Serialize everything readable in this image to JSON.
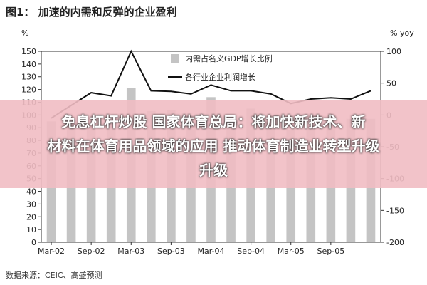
{
  "title": "图1：  加速的内需和反弹的企业盈利",
  "left_unit": "%",
  "right_unit": "% yoy",
  "source": "数据来源：CEIC、高盛预测",
  "overlay": {
    "line1": "免息杠杆炒股 国家体育总局：将加快新技术、新",
    "line2": "材料在体育用品领域的应用 推动体育制造业转型升级",
    "line3": "升级"
  },
  "chart_data": {
    "type": "bar+line",
    "left_axis": {
      "ylim": [
        0,
        150
      ],
      "ticks": [
        0,
        10,
        20,
        30,
        40,
        50,
        60,
        70,
        80,
        90,
        100,
        110,
        120,
        130,
        140,
        150
      ]
    },
    "right_axis": {
      "ylim": [
        -200,
        100
      ],
      "ticks": [
        100,
        50,
        0,
        -50,
        -100,
        -150,
        -200
      ]
    },
    "x_ticks": [
      "Mar-02",
      "Sep-02",
      "Mar-03",
      "Sep-03",
      "Mar-04",
      "Sep-04",
      "Mar-05",
      "Sep-05"
    ],
    "x_tick_index": [
      0,
      2,
      4,
      6,
      8,
      10,
      12,
      14
    ],
    "legend": {
      "position": "top-right",
      "bar_label": "内需占名义GDP增长比例",
      "line_label": "各行业企业利润增长"
    },
    "colors": {
      "bar": "#c4c4c4",
      "line": "#111111"
    },
    "bar_series": {
      "name": "内需占名义GDP增长比例",
      "values": [
        95,
        95,
        97,
        96,
        121,
        103,
        104,
        93,
        114,
        96,
        105,
        100,
        88,
        92,
        98,
        97,
        97
      ]
    },
    "line_series": {
      "name": "各行业企业利润增长",
      "values": [
        -5,
        15,
        35,
        30,
        100,
        38,
        37,
        33,
        47,
        38,
        38,
        33,
        18,
        25,
        27,
        25,
        38
      ]
    }
  }
}
